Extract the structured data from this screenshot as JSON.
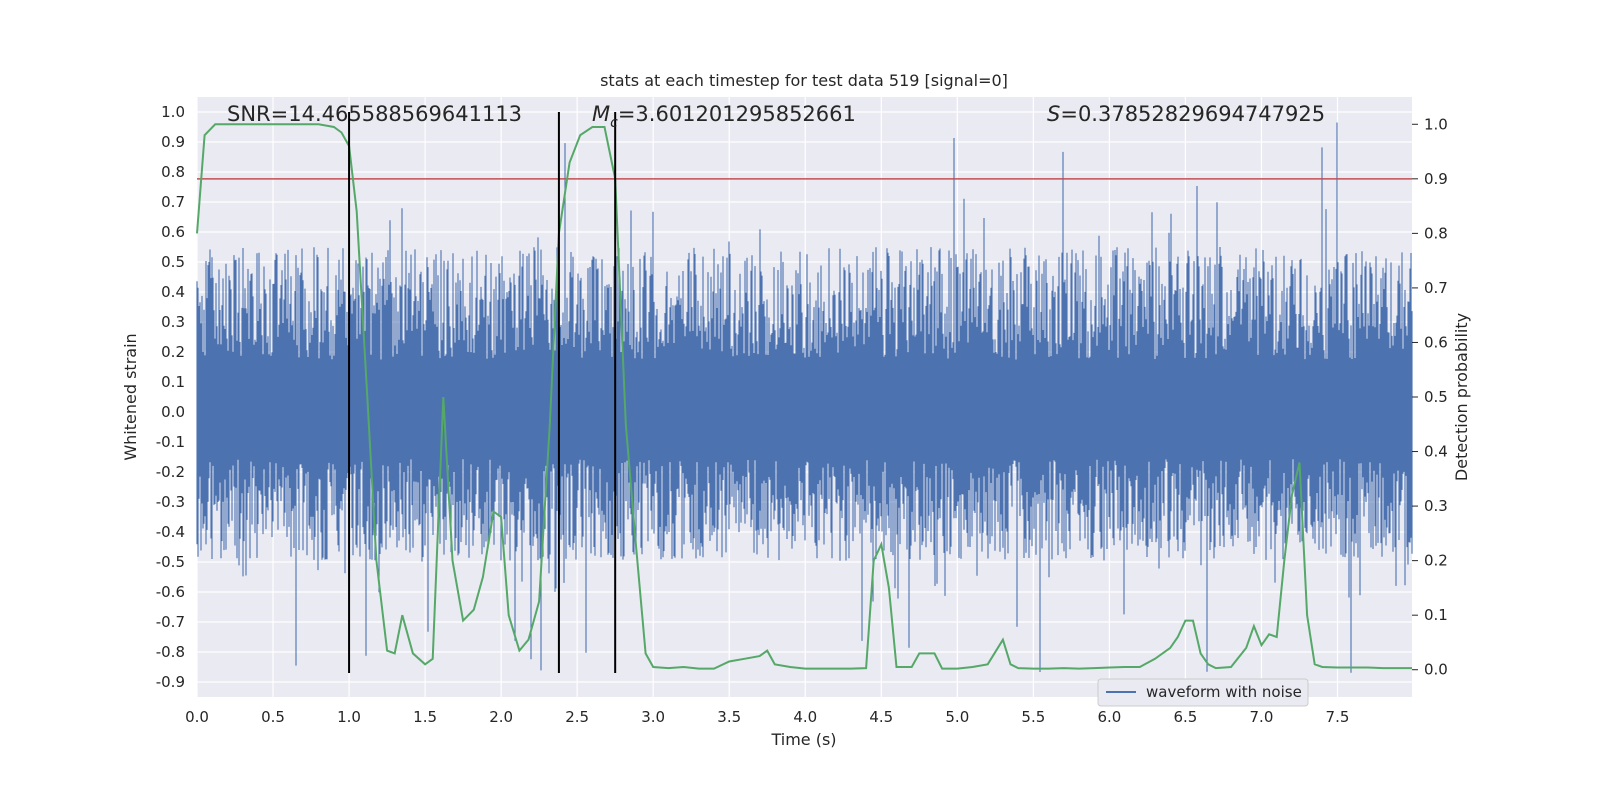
{
  "chart_data": {
    "type": "line",
    "title": "stats at each timestep for test data 519 [signal=0]",
    "xlabel": "Time (s)",
    "ylabel": "Whitened strain",
    "y2label": "Detection probability",
    "xlim": [
      0.0,
      7.99
    ],
    "ylim": [
      -0.95,
      1.05
    ],
    "y2lim": [
      -0.05,
      1.05
    ],
    "xticks": [
      "0.0",
      "0.5",
      "1.0",
      "1.5",
      "2.0",
      "2.5",
      "3.0",
      "3.5",
      "4.0",
      "4.5",
      "5.0",
      "5.5",
      "6.0",
      "6.5",
      "7.0",
      "7.5"
    ],
    "yticks": [
      "1.0",
      "0.9",
      "0.8",
      "0.7",
      "0.6",
      "0.5",
      "0.4",
      "0.3",
      "0.2",
      "0.1",
      "0.0",
      "-0.1",
      "-0.2",
      "-0.3",
      "-0.4",
      "-0.5",
      "-0.6",
      "-0.7",
      "-0.8",
      "-0.9"
    ],
    "y2ticks": [
      "1.0",
      "0.9",
      "0.8",
      "0.7",
      "0.6",
      "0.5",
      "0.4",
      "0.3",
      "0.2",
      "0.1",
      "0.0"
    ],
    "annotations": {
      "snr": "SNR=14.465588569641113",
      "mc_symbol": "M",
      "mc_sub": "c",
      "mc_value": "=3.601201295852661",
      "s_symbol": "S",
      "s_value": "=0.37852829694747925"
    },
    "threshold": {
      "y2": 0.9,
      "color": "#c44e52"
    },
    "vertical_lines": [
      1.0,
      2.38,
      2.75
    ],
    "legend": {
      "label": "waveform with noise",
      "placement": "lower-right"
    },
    "series": [
      {
        "name": "waveform with noise",
        "axis": "left",
        "color": "#4c72b0",
        "sample_count": 8000,
        "typical_envelope": [
          -0.45,
          0.5
        ]
      },
      {
        "name": "detection probability",
        "axis": "right",
        "color": "#55a868",
        "x": [
          0.0,
          0.05,
          0.12,
          0.2,
          0.3,
          0.4,
          0.5,
          0.6,
          0.7,
          0.8,
          0.9,
          0.95,
          1.0,
          1.05,
          1.12,
          1.18,
          1.25,
          1.3,
          1.35,
          1.42,
          1.5,
          1.55,
          1.62,
          1.68,
          1.75,
          1.82,
          1.88,
          1.95,
          2.0,
          2.05,
          2.12,
          2.18,
          2.25,
          2.32,
          2.38,
          2.45,
          2.52,
          2.6,
          2.68,
          2.75,
          2.82,
          2.88,
          2.95,
          3.0,
          3.1,
          3.2,
          3.3,
          3.4,
          3.5,
          3.6,
          3.7,
          3.75,
          3.8,
          3.9,
          4.0,
          4.1,
          4.2,
          4.3,
          4.4,
          4.45,
          4.5,
          4.55,
          4.6,
          4.65,
          4.7,
          4.75,
          4.8,
          4.85,
          4.9,
          5.0,
          5.1,
          5.2,
          5.3,
          5.35,
          5.4,
          5.5,
          5.6,
          5.7,
          5.8,
          5.9,
          6.0,
          6.1,
          6.2,
          6.3,
          6.4,
          6.45,
          6.5,
          6.55,
          6.6,
          6.65,
          6.7,
          6.8,
          6.9,
          6.95,
          7.0,
          7.05,
          7.1,
          7.15,
          7.2,
          7.25,
          7.3,
          7.35,
          7.4,
          7.5,
          7.6,
          7.7,
          7.8,
          7.99
        ],
        "y": [
          0.8,
          0.98,
          1.0,
          1.0,
          1.0,
          1.0,
          1.0,
          1.0,
          1.0,
          1.0,
          0.995,
          0.985,
          0.96,
          0.84,
          0.5,
          0.2,
          0.035,
          0.03,
          0.1,
          0.03,
          0.01,
          0.02,
          0.5,
          0.2,
          0.09,
          0.11,
          0.17,
          0.29,
          0.28,
          0.1,
          0.035,
          0.055,
          0.125,
          0.45,
          0.8,
          0.93,
          0.98,
          0.995,
          0.995,
          0.9,
          0.45,
          0.25,
          0.03,
          0.005,
          0.003,
          0.005,
          0.002,
          0.002,
          0.015,
          0.02,
          0.025,
          0.035,
          0.01,
          0.005,
          0.002,
          0.002,
          0.002,
          0.002,
          0.003,
          0.2,
          0.23,
          0.15,
          0.005,
          0.005,
          0.005,
          0.03,
          0.03,
          0.03,
          0.002,
          0.002,
          0.005,
          0.01,
          0.055,
          0.01,
          0.003,
          0.002,
          0.002,
          0.003,
          0.002,
          0.003,
          0.004,
          0.005,
          0.005,
          0.02,
          0.04,
          0.06,
          0.09,
          0.09,
          0.03,
          0.01,
          0.003,
          0.005,
          0.04,
          0.08,
          0.045,
          0.065,
          0.06,
          0.2,
          0.32,
          0.38,
          0.1,
          0.01,
          0.005,
          0.004,
          0.004,
          0.004,
          0.003,
          0.003
        ]
      }
    ]
  }
}
